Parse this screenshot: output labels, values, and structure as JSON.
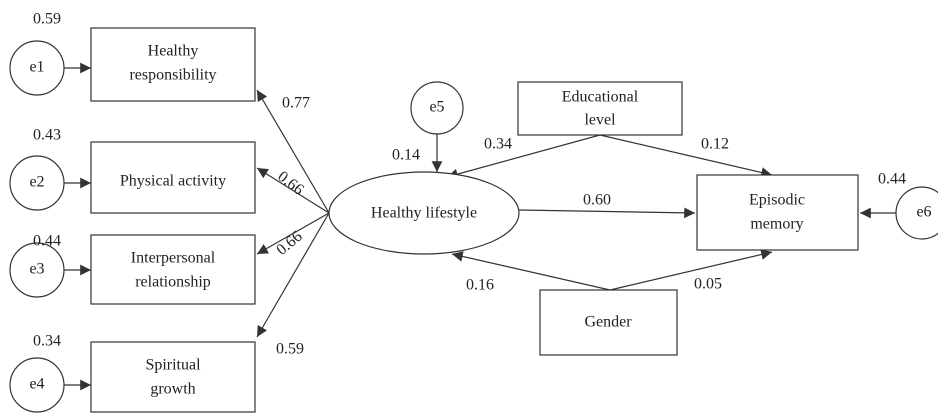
{
  "error_terms": [
    {
      "label": "e1",
      "value_label": "0.59"
    },
    {
      "label": "e2",
      "value_label": "0.43"
    },
    {
      "label": "e3",
      "value_label": "0.44"
    },
    {
      "label": "e4",
      "value_label": "0.34"
    },
    {
      "label": "e5",
      "value_label": "0.14"
    },
    {
      "label": "e6",
      "value_label": "0.44"
    }
  ],
  "indicators": [
    {
      "label": [
        "Healthy",
        "responsibility"
      ],
      "loading": "0.77"
    },
    {
      "label": [
        "Physical activity"
      ],
      "loading": "0.66"
    },
    {
      "label": [
        "Interpersonal",
        "relationship"
      ],
      "loading": "0.66"
    },
    {
      "label": [
        "Spiritual",
        "growth"
      ],
      "loading": "0.59"
    }
  ],
  "latent": {
    "label": "Healthy lifestyle"
  },
  "educational_level": {
    "label": [
      "Educational",
      "level"
    ],
    "to_lifestyle": "0.34",
    "to_memory": "0.12"
  },
  "gender": {
    "label": "Gender",
    "to_lifestyle": "0.16",
    "to_memory": "0.05"
  },
  "episodic_memory": {
    "label": [
      "Episodic",
      "memory"
    ],
    "from_lifestyle": "0.60"
  }
}
